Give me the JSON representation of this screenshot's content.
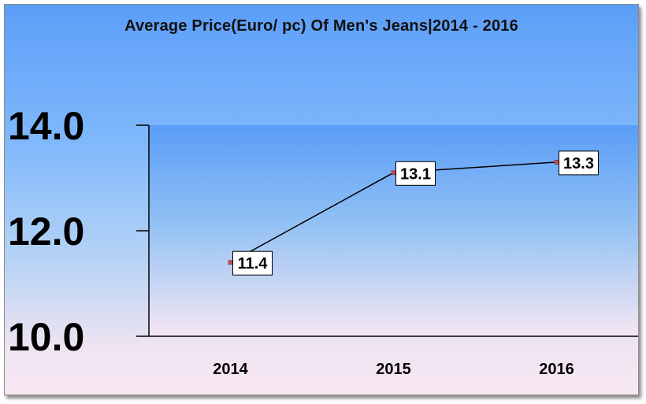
{
  "chart_data": {
    "type": "line",
    "title": "Average Price(Euro/ pc) Of Men's Jeans|2014 - 2016",
    "categories": [
      "2014",
      "2015",
      "2016"
    ],
    "values": [
      11.4,
      13.1,
      13.3
    ],
    "data_labels": [
      "11.4",
      "13.1",
      "13.3"
    ],
    "y_ticks": [
      "10.0",
      "12.0",
      "14.0"
    ],
    "y_tick_values": [
      10,
      12,
      14
    ],
    "ylim": [
      10,
      14
    ],
    "grid": false,
    "legend": "none",
    "colors": {
      "line": "#000000",
      "marker": "#c0504d",
      "plot_area_top": "#5c9ef8",
      "plot_area_bottom": "#f8e8f4",
      "label_box": "#ffffff"
    }
  }
}
